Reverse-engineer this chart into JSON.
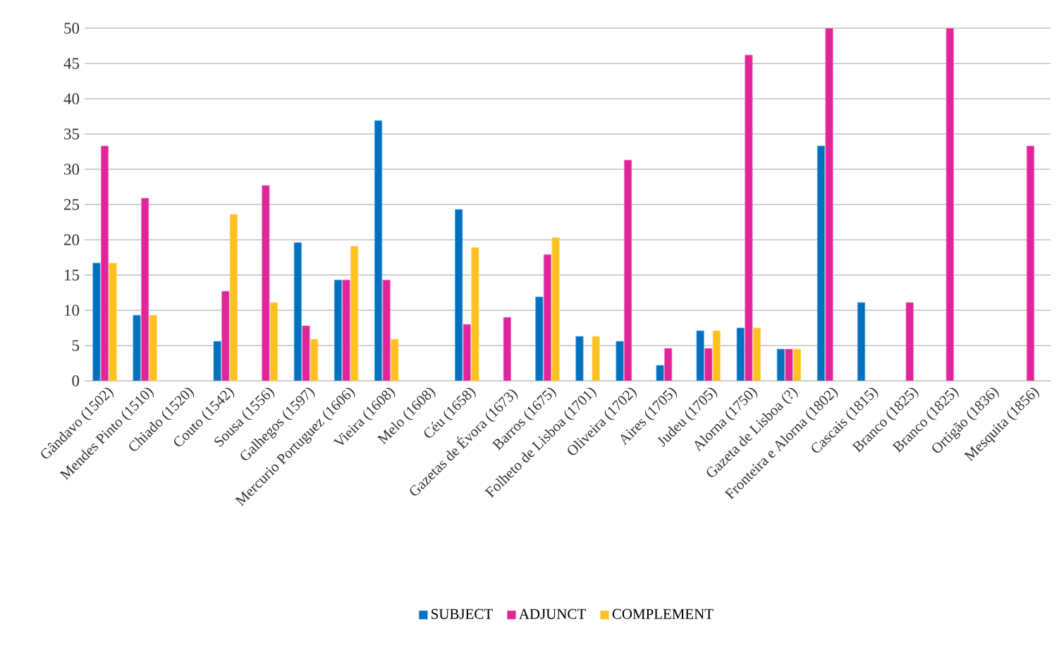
{
  "chart_data": {
    "type": "bar",
    "categories": [
      "Gândavo (1502)",
      "Mendes Pinto (1510)",
      "Chiado (1520)",
      "Couto (1542)",
      "Sousa (1556)",
      "Galhegos (1597)",
      "Mercurio Portuguez (1606)",
      "Vieira (1608)",
      "Melo (1608)",
      "Céu (1658)",
      "Gazetas de Évora (1673)",
      "Barros (1675)",
      "Folheto de Lisboa (1701)",
      "Oliveira (1702)",
      "Aires (1705)",
      "Judeu (1705)",
      "Alorna (1750)",
      "Gazeta de Lisboa (?)",
      "Fronteira e Alorna (1802)",
      "Cascais (1815)",
      "Branco (1825)",
      "Branco (1825)",
      "Ortigão (1836)",
      "Mesquita (1856)"
    ],
    "series": [
      {
        "name": "SUBJECT",
        "color": "#0070c0",
        "values": [
          16.7,
          9.3,
          null,
          5.6,
          null,
          19.6,
          14.3,
          36.9,
          null,
          24.3,
          null,
          11.9,
          6.3,
          5.6,
          2.2,
          7.1,
          7.5,
          4.5,
          33.3,
          11.1,
          null,
          null,
          null,
          null
        ]
      },
      {
        "name": "ADJUNCT",
        "color": "#e0249a",
        "values": [
          33.3,
          25.9,
          null,
          12.7,
          27.7,
          7.8,
          14.3,
          14.3,
          null,
          8.0,
          9.0,
          17.9,
          null,
          31.3,
          4.6,
          4.6,
          46.2,
          4.5,
          50,
          null,
          11.1,
          50,
          null,
          33.3
        ]
      },
      {
        "name": "COMPLEMENT",
        "color": "#ffc020",
        "values": [
          16.7,
          9.3,
          null,
          23.6,
          11.1,
          5.9,
          19.1,
          5.9,
          null,
          18.9,
          null,
          20.3,
          6.3,
          null,
          null,
          7.1,
          7.5,
          4.5,
          null,
          null,
          null,
          null,
          null,
          null
        ]
      }
    ],
    "ylim": [
      0,
      50
    ],
    "yticks": [
      0,
      5,
      10,
      15,
      20,
      25,
      30,
      35,
      40,
      45,
      50
    ],
    "grid": "y",
    "legend": "bottom"
  }
}
